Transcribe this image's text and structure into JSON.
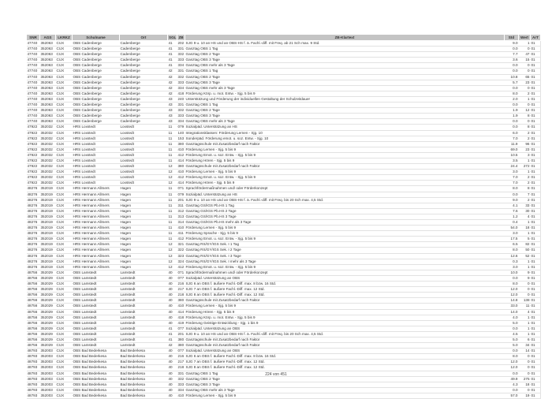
{
  "columns": [
    "SNR",
    "AGS",
    "LKRKZ",
    "Schulname",
    "Ort",
    "SGL",
    "ZB",
    "ZB-Klartext",
    "Std",
    "Wert",
    "ArT"
  ],
  "rows": [
    [
      "47740",
      "352063",
      "CUX",
      "OBS Cadenberge",
      "Cadenberge",
      "41",
      "202",
      "SJG 9 u. 10 an HS und an OBS-HS f. ä. Fachl.-diff. mit Freq. ab 21 Sch max. 9 Std.",
      "9.0",
      "1",
      "01"
    ],
    [
      "47740",
      "352063",
      "CUX",
      "OBS Cadenberge",
      "Cadenberge",
      "41",
      "331",
      "Ganztag OBS 1 Tag",
      "0.0",
      "0",
      "01"
    ],
    [
      "47740",
      "352063",
      "CUX",
      "OBS Cadenberge",
      "Cadenberge",
      "41",
      "332",
      "Ganztag OBS 2 Tage",
      "7.7",
      "47",
      "01"
    ],
    [
      "47740",
      "352063",
      "CUX",
      "OBS Cadenberge",
      "Cadenberge",
      "41",
      "333",
      "Ganztag OBS 3 Tage",
      "3.6",
      "15",
      "01"
    ],
    [
      "47740",
      "352063",
      "CUX",
      "OBS Cadenberge",
      "Cadenberge",
      "41",
      "334",
      "Ganztag OBS mehr als 3 Tage",
      "0.0",
      "0",
      "01"
    ],
    [
      "47740",
      "352063",
      "CUX",
      "OBS Cadenberge",
      "Cadenberge",
      "42",
      "331",
      "Ganztag OBS 1 Tag",
      "0.0",
      "0",
      "01"
    ],
    [
      "47740",
      "352063",
      "CUX",
      "OBS Cadenberge",
      "Cadenberge",
      "42",
      "332",
      "Ganztag OBS 2 Tage",
      "10.8",
      "65",
      "01"
    ],
    [
      "47740",
      "352063",
      "CUX",
      "OBS Cadenberge",
      "Cadenberge",
      "42",
      "333",
      "Ganztag OBS 3 Tage",
      "5.7",
      "23",
      "01"
    ],
    [
      "47740",
      "352063",
      "CUX",
      "OBS Cadenberge",
      "Cadenberge",
      "42",
      "334",
      "Ganztag OBS mehr als 3 Tage",
      "0.0",
      "0",
      "01"
    ],
    [
      "47740",
      "352063",
      "CUX",
      "OBS Cadenberge",
      "Cadenberge",
      "42",
      "418",
      "Förderung Körp. u. mot. Entw. - Sjg. 5 bis 9",
      "8.0",
      "2",
      "01"
    ],
    [
      "47740",
      "352063",
      "CUX",
      "OBS Cadenberge",
      "Cadenberge",
      "43",
      "240",
      "Unterstützung und Förderung der individuellen Gestaltung der Schulzeitdauer",
      "2.0",
      "1",
      "01"
    ],
    [
      "47740",
      "352063",
      "CUX",
      "OBS Cadenberge",
      "Cadenberge",
      "43",
      "331",
      "Ganztag OBS 1 Tag",
      "0.0",
      "0",
      "01"
    ],
    [
      "47740",
      "352063",
      "CUX",
      "OBS Cadenberge",
      "Cadenberge",
      "43",
      "332",
      "Ganztag OBS 2 Tage",
      "1.9",
      "12",
      "01"
    ],
    [
      "47740",
      "352063",
      "CUX",
      "OBS Cadenberge",
      "Cadenberge",
      "43",
      "333",
      "Ganztag OBS 3 Tage",
      "1.9",
      "8",
      "01"
    ],
    [
      "47740",
      "352063",
      "CUX",
      "OBS Cadenberge",
      "Cadenberge",
      "43",
      "334",
      "Ganztag OBS mehr als 3 Tage",
      "0.0",
      "0",
      "01"
    ],
    [
      "47922",
      "352032",
      "CUX",
      "HRS Loxstedt",
      "Loxstedt",
      "11",
      "079",
      "Sozialpäd. Unterstützung an HS",
      "0.0",
      "8",
      "01"
    ],
    [
      "47922",
      "352032",
      "CUX",
      "HRS Loxstedt",
      "Loxstedt",
      "11",
      "140",
      "Integrationsklassen: Förderung Lernen - Sjg. 10",
      "6.0",
      "2",
      "01"
    ],
    [
      "47922",
      "352032",
      "CUX",
      "HRS Loxstedt",
      "Loxstedt",
      "11",
      "153",
      "Sonderpäd. Förderung emot. u. soz. Entw. - Sjg. 10",
      "7.0",
      "2",
      "01"
    ],
    [
      "47922",
      "352032",
      "CUX",
      "HRS Loxstedt",
      "Loxstedt",
      "11",
      "380",
      "Ganztagsschule mit Zusatzbedarf nach Faktor",
      "11.9",
      "96",
      "01"
    ],
    [
      "47922",
      "352032",
      "CUX",
      "HRS Loxstedt",
      "Loxstedt",
      "11",
      "410",
      "Förderung Lernen  - Sjg. 5 bis 9",
      "69.0",
      "23",
      "01"
    ],
    [
      "47922",
      "352032",
      "CUX",
      "HRS Loxstedt",
      "Loxstedt",
      "11",
      "412",
      "Förderung Emot. u. soz. Entw.  - Sjg. 5 bis 9",
      "10.5",
      "3",
      "01"
    ],
    [
      "47922",
      "352032",
      "CUX",
      "HRS Loxstedt",
      "Loxstedt",
      "11",
      "414",
      "Förderung Hören  - Sjg. 5 bis 9",
      "3.5",
      "1",
      "01"
    ],
    [
      "47922",
      "352032",
      "CUX",
      "HRS Loxstedt",
      "Loxstedt",
      "12",
      "380",
      "Ganztagsschule mit Zusatzbedarf nach Faktor",
      "24.4",
      "272",
      "01"
    ],
    [
      "47922",
      "352032",
      "CUX",
      "HRS Loxstedt",
      "Loxstedt",
      "12",
      "410",
      "Förderung Lernen  - Sjg. 5 bis 9",
      "3.0",
      "1",
      "01"
    ],
    [
      "47922",
      "352032",
      "CUX",
      "HRS Loxstedt",
      "Loxstedt",
      "12",
      "412",
      "Förderung Emot. u. soz. Entw.  - Sjg. 5 bis 9",
      "7.0",
      "2",
      "01"
    ],
    [
      "47922",
      "352032",
      "CUX",
      "HRS Loxstedt",
      "Loxstedt",
      "12",
      "414",
      "Förderung Hören  - Sjg. 5 bis 9",
      "7.0",
      "2",
      "01"
    ],
    [
      "48276",
      "352019",
      "CUX",
      "HRS Hermann Allmers",
      "Hagen",
      "11",
      "071",
      "Sprachfördermaßnahmen und/ oder Förderkonzept",
      "8.0",
      "8",
      "01"
    ],
    [
      "48276",
      "352019",
      "CUX",
      "HRS Hermann Allmers",
      "Hagen",
      "11",
      "079",
      "Sozialpäd. Unterstützung an HS",
      "0.0",
      "7",
      "01"
    ],
    [
      "48276",
      "352019",
      "CUX",
      "HRS Hermann Allmers",
      "Hagen",
      "11",
      "201",
      "SJG 9 u. 10 an HS und an OBS-HS f. ä. Fachl.-diff. mit Freq. bis 20 Sch max. 4,5 Std.",
      "9.0",
      "2",
      "01"
    ],
    [
      "48276",
      "352019",
      "CUX",
      "HRS Hermann Allmers",
      "Hagen",
      "11",
      "311",
      "Ganztag GS/IGS Pb.HS 1 Tag",
      "4.1",
      "33",
      "01"
    ],
    [
      "48276",
      "352019",
      "CUX",
      "HRS Hermann Allmers",
      "Hagen",
      "11",
      "312",
      "Ganztag GS/IGS Pb.HS 2 Tage",
      "7.6",
      "30",
      "01"
    ],
    [
      "48276",
      "352019",
      "CUX",
      "HRS Hermann Allmers",
      "Hagen",
      "11",
      "313",
      "Ganztag GS/IGS Pb.HS 3 Tage",
      "1.2",
      "4",
      "01"
    ],
    [
      "48276",
      "352019",
      "CUX",
      "HRS Hermann Allmers",
      "Hagen",
      "11",
      "314",
      "Ganztag GS/IGS Pb.HS mehr als 3 Tage",
      "0.4",
      "1",
      "01"
    ],
    [
      "48276",
      "352019",
      "CUX",
      "HRS Hermann Allmers",
      "Hagen",
      "11",
      "410",
      "Förderung Lernen  - Sjg. 5 bis 9",
      "54.0",
      "18",
      "01"
    ],
    [
      "48276",
      "352019",
      "CUX",
      "HRS Hermann Allmers",
      "Hagen",
      "11",
      "411",
      "Förderung Sprache  - Sjg. 5 bis 9",
      "3.0",
      "1",
      "01"
    ],
    [
      "48276",
      "352019",
      "CUX",
      "HRS Hermann Allmers",
      "Hagen",
      "11",
      "412",
      "Förderung Emot. u. soz. Entw.  - Sjg. 5 bis 9",
      "17.5",
      "5",
      "01"
    ],
    [
      "48276",
      "352019",
      "CUX",
      "HRS Hermann Allmers",
      "Hagen",
      "12",
      "321",
      "Ganztag RS/GY/IGS Sek. I  1 Tag",
      "6.5",
      "82",
      "01"
    ],
    [
      "48276",
      "352019",
      "CUX",
      "HRS Hermann Allmers",
      "Hagen",
      "12",
      "322",
      "Ganztag RS/GY/IGS Sek. I  2 Tage",
      "8.0",
      "50",
      "01"
    ],
    [
      "48276",
      "352019",
      "CUX",
      "HRS Hermann Allmers",
      "Hagen",
      "12",
      "323",
      "Ganztag RS/GY/IGS Sek. I  3 Tage",
      "12.6",
      "52",
      "01"
    ],
    [
      "48276",
      "352019",
      "CUX",
      "HRS Hermann Allmers",
      "Hagen",
      "12",
      "324",
      "Ganztag RS/GY/IGS Sek. I  mehr als 3 Tage",
      "0.3",
      "1",
      "01"
    ],
    [
      "48276",
      "352019",
      "CUX",
      "HRS Hermann Allmers",
      "Hagen",
      "12",
      "412",
      "Förderung Emot. u. soz. Entw.  - Sjg. 5 bis 9",
      "3.0",
      "1",
      "01"
    ],
    [
      "48756",
      "352029",
      "CUX",
      "OBS Lamstedt",
      "Lamstedt",
      "40",
      "071",
      "Sprachfördermaßnahmen und/ oder Förderkonzept",
      "10.0",
      "9",
      "01"
    ],
    [
      "48756",
      "352029",
      "CUX",
      "OBS Lamstedt",
      "Lamstedt",
      "40",
      "077",
      "Sozialpäd. Unterstützung an OBS",
      "0.0",
      "9",
      "01"
    ],
    [
      "48756",
      "352029",
      "CUX",
      "OBS Lamstedt",
      "Lamstedt",
      "40",
      "216",
      "SJG 6 an OBS f. äußere Fachl.-Diff. max. 8 bzw. 16 Std.",
      "8.0",
      "0",
      "01"
    ],
    [
      "48756",
      "352029",
      "CUX",
      "OBS Lamstedt",
      "Lamstedt",
      "40",
      "217",
      "SJG 7 an OBS f. äußere Fachl.-Diff. max. 12 Std.",
      "12.0",
      "0",
      "01"
    ],
    [
      "48756",
      "352029",
      "CUX",
      "OBS Lamstedt",
      "Lamstedt",
      "40",
      "218",
      "SJG 8 an OBS f. äußere Fachl.-Diff. max. 12 Std.",
      "12.0",
      "0",
      "01"
    ],
    [
      "48756",
      "352029",
      "CUX",
      "OBS Lamstedt",
      "Lamstedt",
      "40",
      "380",
      "Ganztagsschule mit Zusatzbedarf nach Faktor",
      "14.8",
      "138",
      "01"
    ],
    [
      "48756",
      "352029",
      "CUX",
      "OBS Lamstedt",
      "Lamstedt",
      "40",
      "410",
      "Förderung Lernen  - Sjg. 5 bis 9",
      "33.0",
      "11",
      "01"
    ],
    [
      "48756",
      "352029",
      "CUX",
      "OBS Lamstedt",
      "Lamstedt",
      "40",
      "414",
      "Förderung Hören  - Sjg. 5 bis 9",
      "14.0",
      "4",
      "01"
    ],
    [
      "48756",
      "352029",
      "CUX",
      "OBS Lamstedt",
      "Lamstedt",
      "40",
      "418",
      "Förderung Körp. u. mot. Entw. - Sjg. 5 bis 9",
      "4.0",
      "1",
      "01"
    ],
    [
      "48756",
      "352029",
      "CUX",
      "OBS Lamstedt",
      "Lamstedt",
      "40",
      "419",
      "Förderung Geistige Entwicklung - Sjg. 1 bis 9",
      "5.0",
      "1",
      "01"
    ],
    [
      "48756",
      "352029",
      "CUX",
      "OBS Lamstedt",
      "Lamstedt",
      "41",
      "077",
      "Sozialpäd. Unterstützung an OBS",
      "0.0",
      "1",
      "01"
    ],
    [
      "48756",
      "352029",
      "CUX",
      "OBS Lamstedt",
      "Lamstedt",
      "41",
      "201",
      "SJG 9 u. 10 an HS und an OBS-HS f. ä. Fachl.-diff. mit Freq. bis 20 Sch max. 4,5 Std.",
      "4.5",
      "1",
      "01"
    ],
    [
      "48756",
      "352029",
      "CUX",
      "OBS Lamstedt",
      "Lamstedt",
      "41",
      "380",
      "Ganztagsschule mit Zusatzbedarf nach Faktor",
      "5.0",
      "6",
      "01"
    ],
    [
      "48756",
      "352029",
      "CUX",
      "OBS Lamstedt",
      "Lamstedt",
      "42",
      "380",
      "Ganztagsschule mit Zusatzbedarf nach Faktor",
      "5.0",
      "34",
      "01"
    ],
    [
      "48793",
      "352003",
      "CUX",
      "OBS Bad Bederkesa",
      "Bad Bederkesa",
      "40",
      "077",
      "Sozialpäd. Unterstützung an OBS",
      "0.0",
      "14",
      "01"
    ],
    [
      "48793",
      "352003",
      "CUX",
      "OBS Bad Bederkesa",
      "Bad Bederkesa",
      "40",
      "216",
      "SJG 6 an OBS f. äußere Fachl.-Diff. max. 8 bzw. 16 Std.",
      "8.0",
      "0",
      "01"
    ],
    [
      "48793",
      "352003",
      "CUX",
      "OBS Bad Bederkesa",
      "Bad Bederkesa",
      "40",
      "217",
      "SJG 7 an OBS f. äußere Fachl.-Diff. max. 12 Std.",
      "12.0",
      "0",
      "01"
    ],
    [
      "48793",
      "352003",
      "CUX",
      "OBS Bad Bederkesa",
      "Bad Bederkesa",
      "40",
      "218",
      "SJG 8 an OBS f. äußere Fachl.-Diff. max. 12 Std.",
      "12.0",
      "0",
      "01"
    ],
    [
      "48793",
      "352003",
      "CUX",
      "OBS Bad Bederkesa",
      "Bad Bederkesa",
      "40",
      "331",
      "Ganztag OBS 1 Tag",
      "0.0",
      "0",
      "01"
    ],
    [
      "48793",
      "352003",
      "CUX",
      "OBS Bad Bederkesa",
      "Bad Bederkesa",
      "40",
      "332",
      "Ganztag OBS 2 Tage",
      "49.9",
      "275",
      "01"
    ],
    [
      "48793",
      "352003",
      "CUX",
      "OBS Bad Bederkesa",
      "Bad Bederkesa",
      "40",
      "333",
      "Ganztag OBS 3 Tage",
      "4.3",
      "18",
      "01"
    ],
    [
      "48793",
      "352003",
      "CUX",
      "OBS Bad Bederkesa",
      "Bad Bederkesa",
      "40",
      "334",
      "Ganztag OBS mehr als 3 Tage",
      "0.0",
      "0",
      "01"
    ],
    [
      "48793",
      "352003",
      "CUX",
      "OBS Bad Bederkesa",
      "Bad Bederkesa",
      "40",
      "410",
      "Förderung Lernen  - Sjg. 5 bis 9",
      "57.0",
      "19",
      "01"
    ]
  ],
  "footer": {
    "page": "224 von 451"
  }
}
